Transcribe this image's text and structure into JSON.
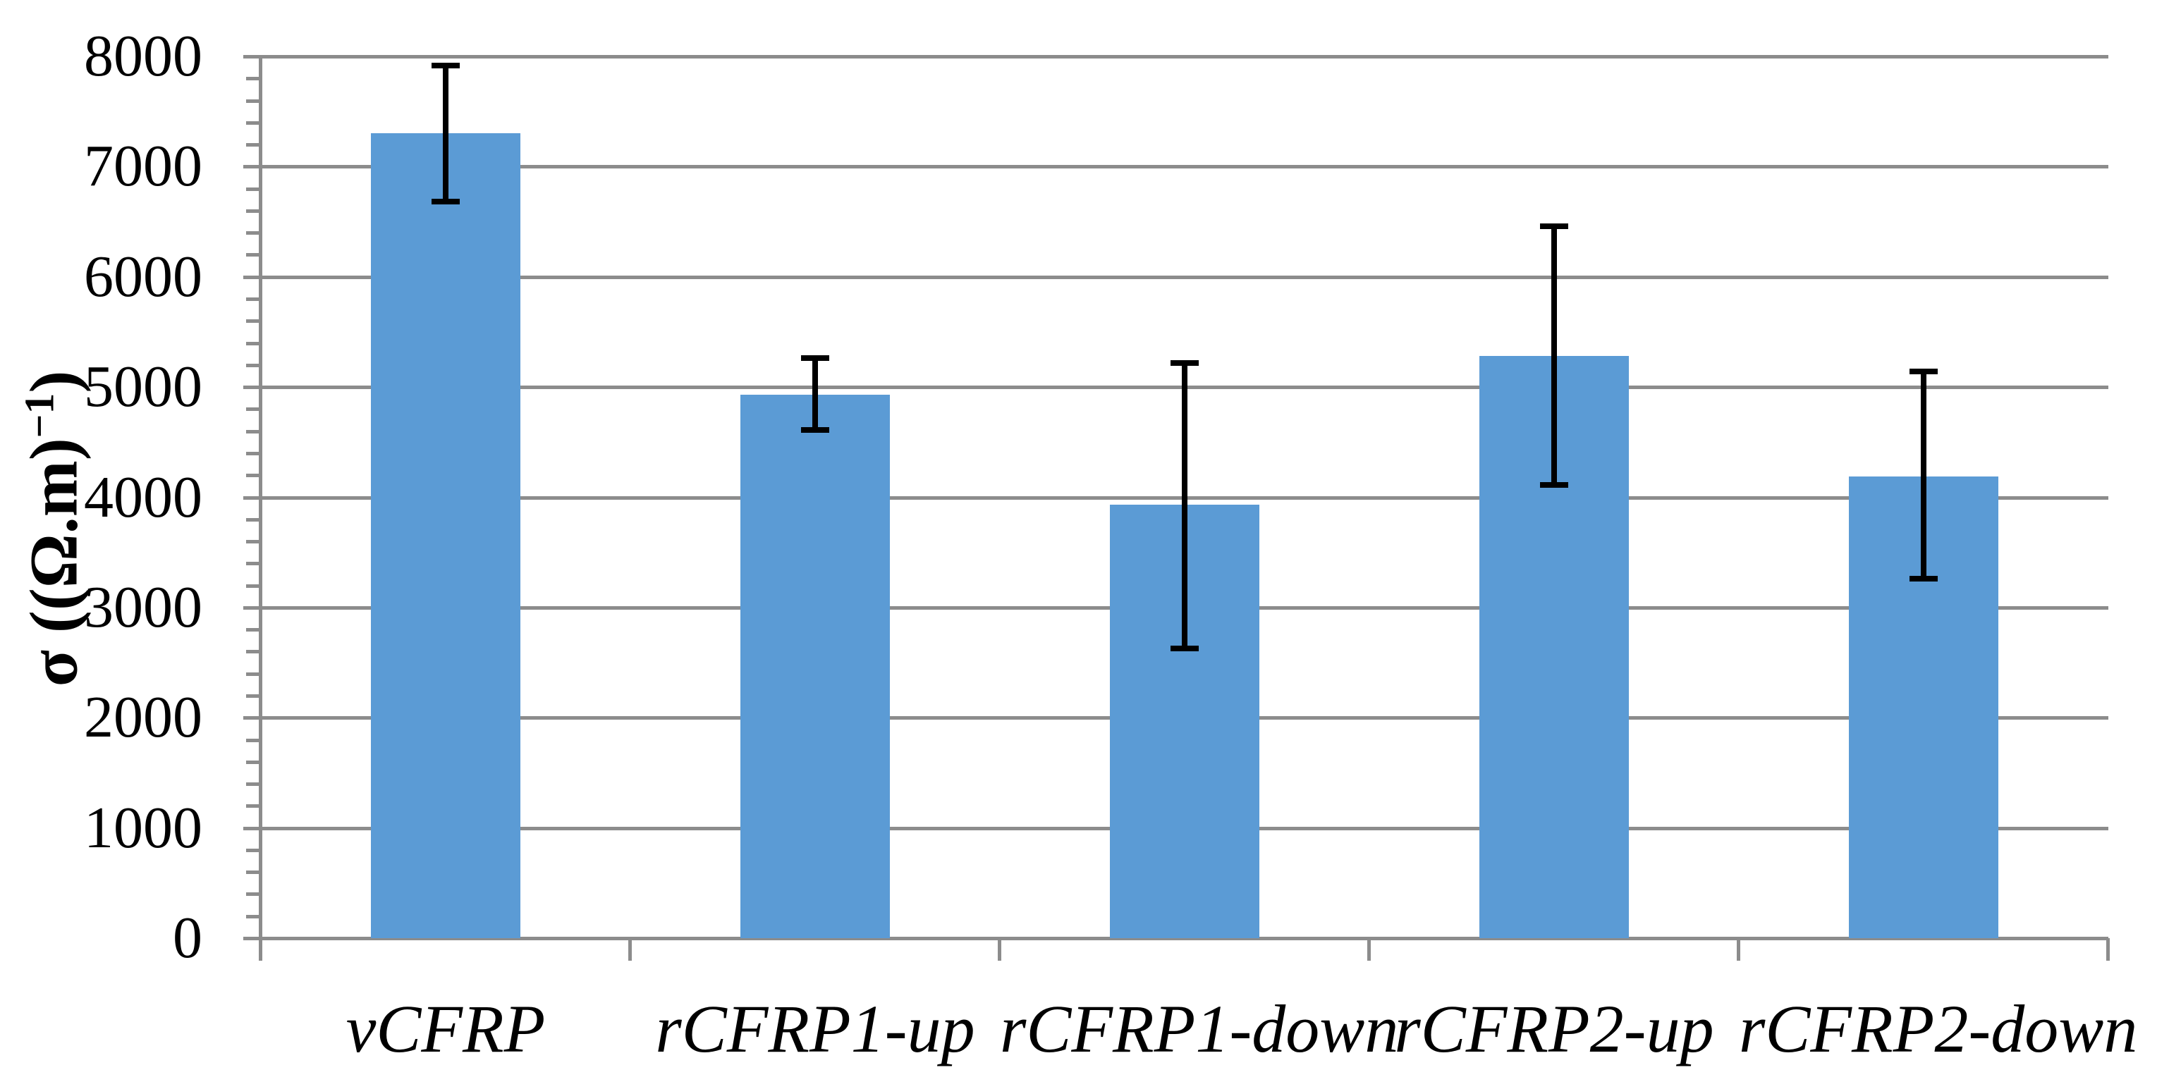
{
  "chart_data": {
    "type": "bar",
    "title": "",
    "categories": [
      "vCFRP",
      "rCFRP1-up",
      "rCFRP1-down",
      "rCFRP2-up",
      "rCFRP2-down"
    ],
    "values": [
      7300,
      4930,
      3930,
      5280,
      4190
    ],
    "error_bars": {
      "upper": [
        7920,
        5260,
        5220,
        6460,
        5140
      ],
      "lower": [
        6680,
        4610,
        2630,
        4110,
        3260
      ]
    },
    "ylabel": "σ ((Ω.m)−1)",
    "ylabel_parts": {
      "prefix": "σ ((Ω.m)",
      "superscript": "−1",
      "suffix": ")"
    },
    "xlabel": "",
    "ylim": [
      0,
      8000
    ],
    "ytick_step": 1000,
    "minor_tick_step": 200,
    "yticks": [
      "0",
      "1000",
      "2000",
      "3000",
      "4000",
      "5000",
      "6000",
      "7000",
      "8000"
    ],
    "grid": true,
    "legend": false,
    "bar_color": "#5B9BD5",
    "error_color": "#000000",
    "grid_color": "#8C8C8C",
    "text_color": "#000000"
  }
}
